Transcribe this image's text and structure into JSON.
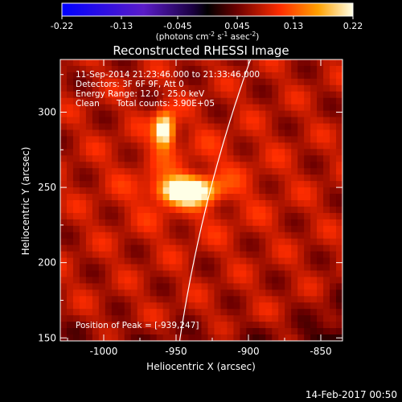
{
  "chart_data": {
    "type": "heatmap",
    "title": "Reconstructed RHESSI Image",
    "xlabel": "Heliocentric X (arcsec)",
    "ylabel": "Heliocentric Y (arcsec)",
    "xlim": [
      -1030,
      -835
    ],
    "ylim": [
      148,
      335
    ],
    "xticks": [
      -1000,
      -950,
      -900,
      -850
    ],
    "xtick_labels": [
      "-1000",
      "-950",
      "-900",
      "-850"
    ],
    "yticks": [
      150,
      200,
      250,
      300
    ],
    "ytick_labels": [
      "150",
      "200",
      "250",
      "300"
    ],
    "colorbar": {
      "range": [
        -0.22,
        0.22
      ],
      "ticks": [
        -0.22,
        -0.13,
        -0.045,
        0.045,
        0.13,
        0.22
      ],
      "tick_labels": [
        "-0.22",
        "-0.13",
        "-0.045",
        "0.045",
        "0.13",
        "0.22"
      ],
      "units_base": "(photons cm",
      "units_exp1": "-2",
      "units_mid": " s",
      "units_exp2": "-1",
      "units_mid2": " asec",
      "units_exp3": "-2",
      "units_end": ")"
    },
    "sources": [
      {
        "x": -958,
        "y": 288,
        "intensity": 0.19,
        "sx": 5,
        "sy": 8
      },
      {
        "x": -943,
        "y": 248,
        "intensity": 0.22,
        "sx": 13,
        "sy": 6
      }
    ],
    "limb": "solar limb arc (white line)",
    "peak_position": [
      -939,
      247
    ],
    "colors": {
      "background": "#000000",
      "limb": "#ffffff"
    }
  },
  "annotations": {
    "time_range": "11-Sep-2014 21:23:46.000 to 21:33:46.000",
    "detectors": "Detectors: 3F 6F 9F, Att 0",
    "energy_range": "Energy Range: 12.0 - 25.0 keV",
    "method": "Clean",
    "total_counts": "Total counts: 3.90E+05",
    "peak": "Position of Peak = [-939,247]"
  },
  "footer_date": "14-Feb-2017 00:50"
}
